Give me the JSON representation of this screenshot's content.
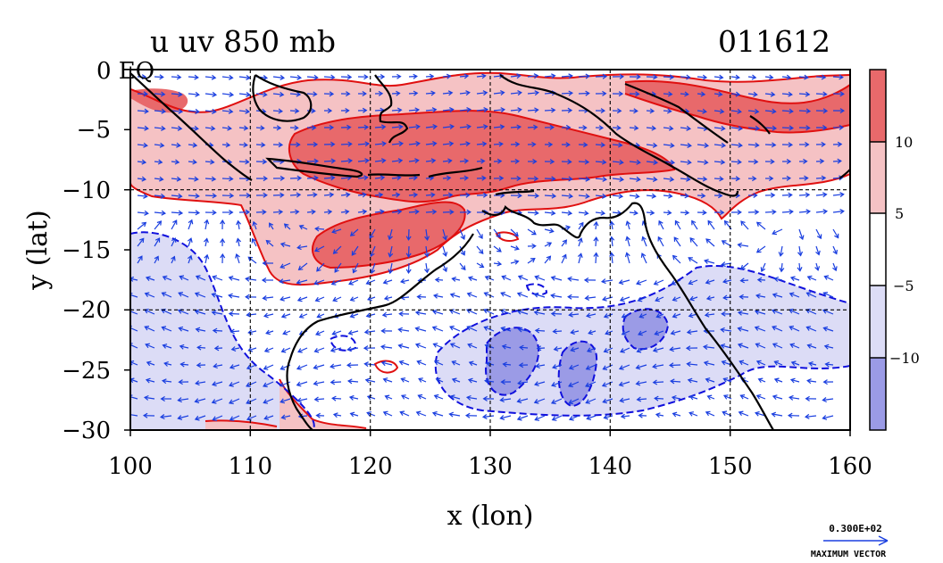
{
  "chart_data": {
    "type": "heatmap",
    "title": "u uv 850 mb",
    "date_label": "011612",
    "xlabel": "x (lon)",
    "ylabel": "y (lat)",
    "x_ticks": [
      "100",
      "110",
      "120",
      "130",
      "140",
      "150",
      "160"
    ],
    "y_ticks": [
      "0 EQ",
      "−5",
      "−10",
      "−15",
      "−20",
      "−25",
      "−30"
    ],
    "xlim": [
      100,
      160
    ],
    "ylim": [
      -30,
      0
    ],
    "gridlines_lon": [
      110,
      120,
      130,
      140,
      150
    ],
    "gridlines_lat": [
      -10,
      -20
    ],
    "colorbar": {
      "levels": [
        {
          "range": "> 10",
          "color": "#e8696b"
        },
        {
          "range": "5 to 10",
          "color": "#f5c2c4"
        },
        {
          "range": "-5 to 5",
          "color": "#ffffff"
        },
        {
          "range": "-10 to -5",
          "color": "#dcdcf6"
        },
        {
          "range": "< -10",
          "color": "#9b9be6"
        }
      ],
      "labels": [
        "10",
        "5",
        "−5",
        "−10"
      ]
    },
    "vector_legend": {
      "value": "0.300E+02",
      "label": "MAXIMUM VECTOR"
    },
    "colors": {
      "strong_positive": "#e8696b",
      "weak_positive": "#f5c2c4",
      "weak_negative": "#dcdcf6",
      "strong_negative": "#9b9be6",
      "positive_contour": "#e01010",
      "negative_contour": "#1010dd",
      "vectors": "#1a3fe0",
      "coast": "#000000"
    }
  }
}
